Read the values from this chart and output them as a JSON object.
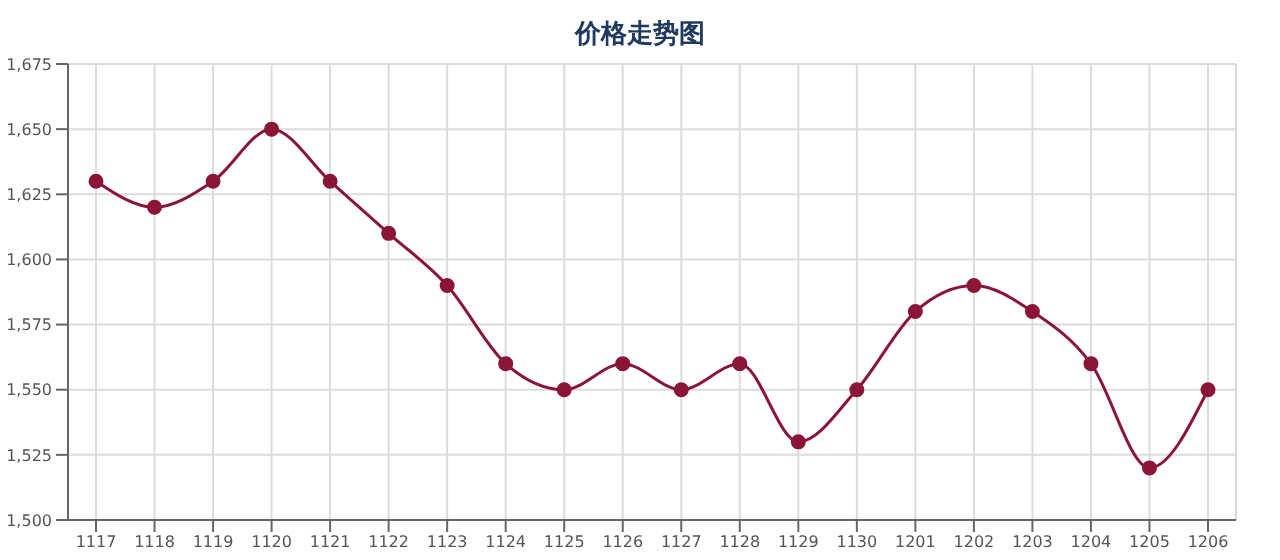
{
  "chart_data": {
    "type": "line",
    "title": "价格走势图",
    "categories": [
      "1117",
      "1118",
      "1119",
      "1120",
      "1121",
      "1122",
      "1123",
      "1124",
      "1125",
      "1126",
      "1127",
      "1128",
      "1129",
      "1130",
      "1201",
      "1202",
      "1203",
      "1204",
      "1205",
      "1206"
    ],
    "series": [
      {
        "color": "#8b1538",
        "values": [
          1630,
          1620,
          1630,
          1650,
          1630,
          1610,
          1590,
          1560,
          1550,
          1560,
          1550,
          1560,
          1530,
          1550,
          1580,
          1590,
          1580,
          1560,
          1520,
          1550
        ]
      }
    ],
    "ylim": [
      1500,
      1675
    ],
    "yticks": [
      {
        "value": 1500,
        "label": "1,500"
      },
      {
        "value": 1525,
        "label": "1,525"
      },
      {
        "value": 1550,
        "label": "1,550"
      },
      {
        "value": 1575,
        "label": "1,575"
      },
      {
        "value": 1600,
        "label": "1,600"
      },
      {
        "value": 1625,
        "label": "1,625"
      },
      {
        "value": 1650,
        "label": "1,650"
      },
      {
        "value": 1675,
        "label": "1,675"
      }
    ],
    "grid": true,
    "marker": "circle",
    "line_style": "solid"
  }
}
